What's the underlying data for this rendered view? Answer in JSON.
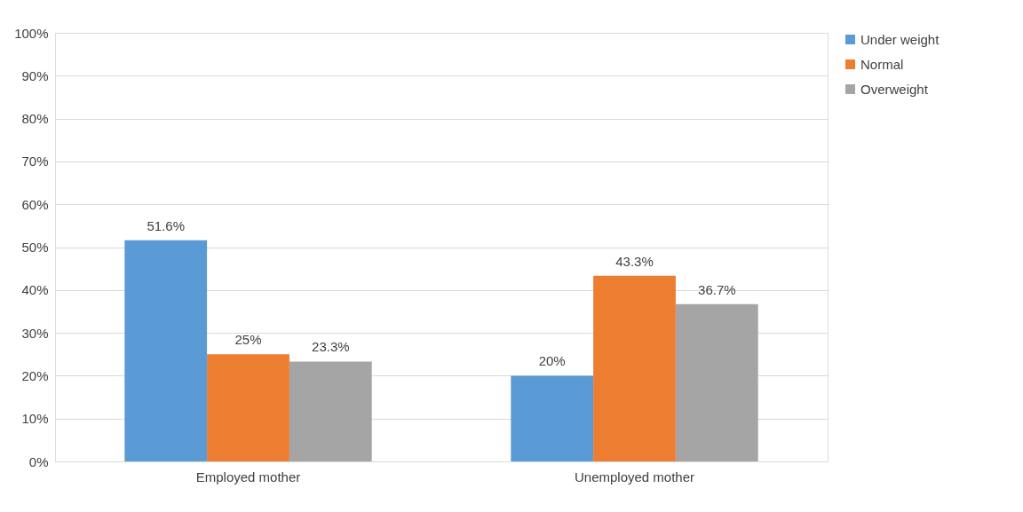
{
  "chart_data": {
    "type": "bar",
    "categories": [
      "Employed mother",
      "Unemployed mother"
    ],
    "series": [
      {
        "name": "Under weight",
        "color": "#5b9bd5",
        "values": [
          51.6,
          20
        ],
        "value_labels": [
          "51.6%",
          "20%"
        ]
      },
      {
        "name": "Normal",
        "color": "#ed7d31",
        "values": [
          25,
          43.3
        ],
        "value_labels": [
          "25%",
          "43.3%"
        ]
      },
      {
        "name": "Overweight",
        "color": "#a5a5a5",
        "values": [
          23.3,
          36.7
        ],
        "value_labels": [
          "23.3%",
          "36.7%"
        ]
      }
    ],
    "ylim": [
      0,
      100
    ],
    "yticks": [
      {
        "value": 0,
        "label": "0%"
      },
      {
        "value": 10,
        "label": "10%"
      },
      {
        "value": 20,
        "label": "20%"
      },
      {
        "value": 30,
        "label": "30%"
      },
      {
        "value": 40,
        "label": "40%"
      },
      {
        "value": 50,
        "label": "50%"
      },
      {
        "value": 60,
        "label": "60%"
      },
      {
        "value": 70,
        "label": "70%"
      },
      {
        "value": 80,
        "label": "80%"
      },
      {
        "value": 90,
        "label": "90%"
      },
      {
        "value": 100,
        "label": "100%"
      }
    ],
    "grid": "y",
    "legend": "right"
  }
}
